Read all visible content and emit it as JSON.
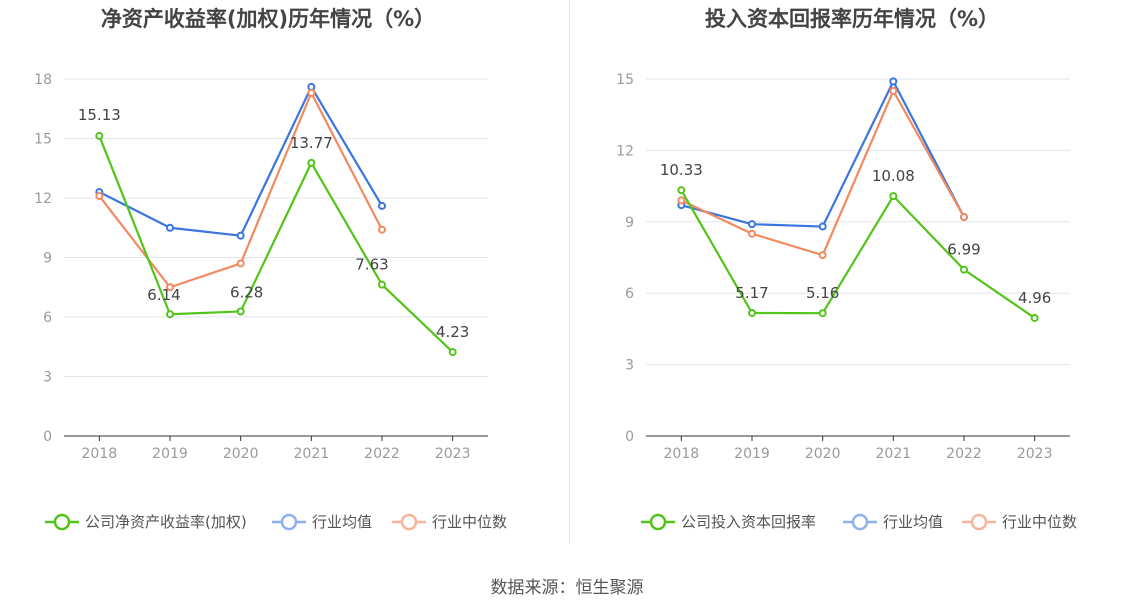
{
  "colors": {
    "company": "#52c41a",
    "industry_avg": "#3a75e0",
    "industry_median": "#f28a5f",
    "legend_avg": "#8fb0ef",
    "legend_median": "#f7b49b",
    "grid": "#e3e6ef",
    "axis": "#333333",
    "tick_text": "#9a9a9a",
    "title_text": "#444444"
  },
  "chart_data": [
    {
      "type": "line",
      "title": "净资产收益率(加权)历年情况（%）",
      "categories": [
        "2018",
        "2019",
        "2020",
        "2021",
        "2022",
        "2023"
      ],
      "ylim": [
        0,
        18
      ],
      "yticks": [
        "0",
        "3",
        "6",
        "9",
        "12",
        "15",
        "18"
      ],
      "grid": true,
      "legend_position": "bottom",
      "series": [
        {
          "name": "公司净资产收益率(加权)",
          "values": [
            15.13,
            6.14,
            6.28,
            13.77,
            7.63,
            4.23
          ],
          "labels": [
            "15.13",
            "6.14",
            "6.28",
            "13.77",
            "7.63",
            "4.23"
          ]
        },
        {
          "name": "行业均值",
          "values": [
            12.3,
            10.5,
            10.1,
            17.6,
            11.6,
            null
          ]
        },
        {
          "name": "行业中位数",
          "values": [
            12.1,
            7.5,
            8.7,
            17.3,
            10.4,
            null
          ]
        }
      ]
    },
    {
      "type": "line",
      "title": "投入资本回报率历年情况（%）",
      "categories": [
        "2018",
        "2019",
        "2020",
        "2021",
        "2022",
        "2023"
      ],
      "ylim": [
        0,
        15
      ],
      "yticks": [
        "0",
        "3",
        "6",
        "9",
        "12",
        "15"
      ],
      "grid": true,
      "legend_position": "bottom",
      "series": [
        {
          "name": "公司投入资本回报率",
          "values": [
            10.33,
            5.17,
            5.16,
            10.08,
            6.99,
            4.96
          ],
          "labels": [
            "10.33",
            "5.17",
            "5.16",
            "10.08",
            "6.99",
            "4.96"
          ]
        },
        {
          "name": "行业均值",
          "values": [
            9.7,
            8.9,
            8.8,
            14.9,
            9.2,
            null
          ]
        },
        {
          "name": "行业中位数",
          "values": [
            9.9,
            8.5,
            7.6,
            14.5,
            9.2,
            null
          ]
        }
      ]
    }
  ],
  "source_text": "数据来源：恒生聚源"
}
